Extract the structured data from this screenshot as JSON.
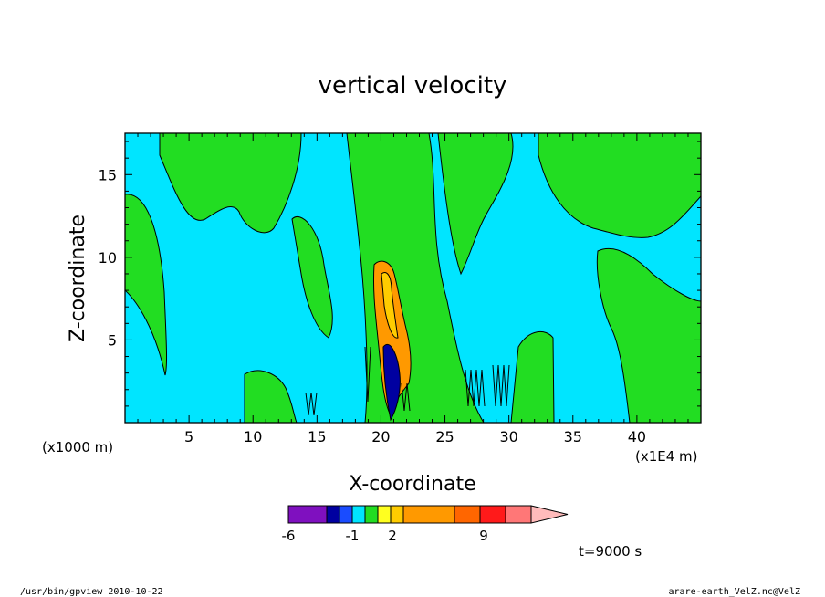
{
  "chart_data": {
    "type": "heatmap",
    "title": "vertical velocity",
    "xlabel": "X-coordinate",
    "ylabel": "Z-coordinate",
    "x_unit_left": "(x1000 m)",
    "x_unit_right": "(x1E4 m)",
    "x_ticks": [
      "5",
      "10",
      "15",
      "20",
      "25",
      "30",
      "35",
      "40"
    ],
    "y_ticks": [
      "5",
      "10",
      "15"
    ],
    "xlim": [
      0,
      45
    ],
    "ylim": [
      0,
      17.5
    ],
    "time_label": "t=9000 s",
    "colorbar": {
      "labels": [
        "-6",
        "-1",
        "2",
        "9"
      ],
      "colors": [
        "#7f10bf",
        "#0000a0",
        "#1a4cff",
        "#00e5ff",
        "#22dd22",
        "#ffff20",
        "#ffcc00",
        "#ff9900",
        "#ff6600",
        "#ff1a1a",
        "#ff7777",
        "#ffbbbb"
      ]
    },
    "colors": {
      "background_field": "#00e5ff",
      "positive_region": "#22dd22",
      "updraft_core": "#ff9900"
    }
  },
  "footer": {
    "left": "/usr/bin/gpview   2010-10-22",
    "right": "arare-earth_VelZ.nc@VelZ"
  }
}
